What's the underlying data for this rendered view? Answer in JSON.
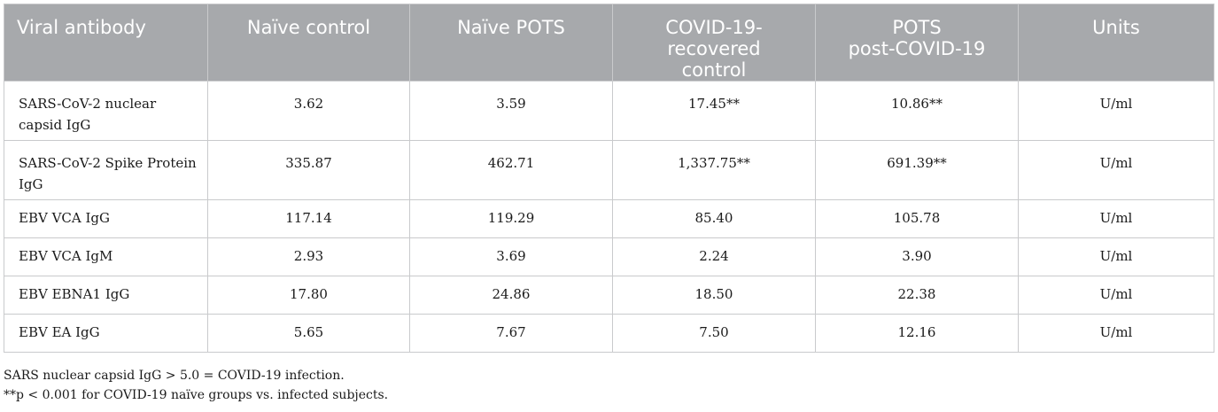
{
  "table": {
    "headers": [
      {
        "label": "Viral antibody"
      },
      {
        "label": "Naïve control"
      },
      {
        "label": "Naïve POTS"
      },
      {
        "label": "COVID-19-\nrecovered\ncontrol"
      },
      {
        "label": "POTS\npost-COVID-19"
      },
      {
        "label": "Units"
      }
    ],
    "rows": [
      {
        "cells": [
          "SARS-CoV-2 nuclear capsid IgG",
          "3.62",
          "3.59",
          "17.45**",
          "10.86**",
          "U/ml"
        ]
      },
      {
        "cells": [
          "SARS-CoV-2 Spike Protein IgG",
          "335.87",
          "462.71",
          "1,337.75**",
          "691.39**",
          "U/ml"
        ]
      },
      {
        "cells": [
          "EBV VCA IgG",
          "117.14",
          "119.29",
          "85.40",
          "105.78",
          "U/ml"
        ]
      },
      {
        "cells": [
          "EBV VCA IgM",
          "2.93",
          "3.69",
          "2.24",
          "3.90",
          "U/ml"
        ]
      },
      {
        "cells": [
          "EBV EBNA1 IgG",
          "17.80",
          "24.86",
          "18.50",
          "22.38",
          "U/ml"
        ]
      },
      {
        "cells": [
          "EBV EA IgG",
          "5.65",
          "7.67",
          "7.50",
          "12.16",
          "U/ml"
        ]
      }
    ]
  },
  "notes": [
    "SARS nuclear capsid IgG > 5.0 = COVID-19 infection.",
    "**p < 0.001 for COVID-19 naïve groups vs. infected subjects."
  ],
  "colors": {
    "header_bg": "#a7a9ac",
    "header_text": "#ffffff",
    "border": "#c9cacc"
  }
}
